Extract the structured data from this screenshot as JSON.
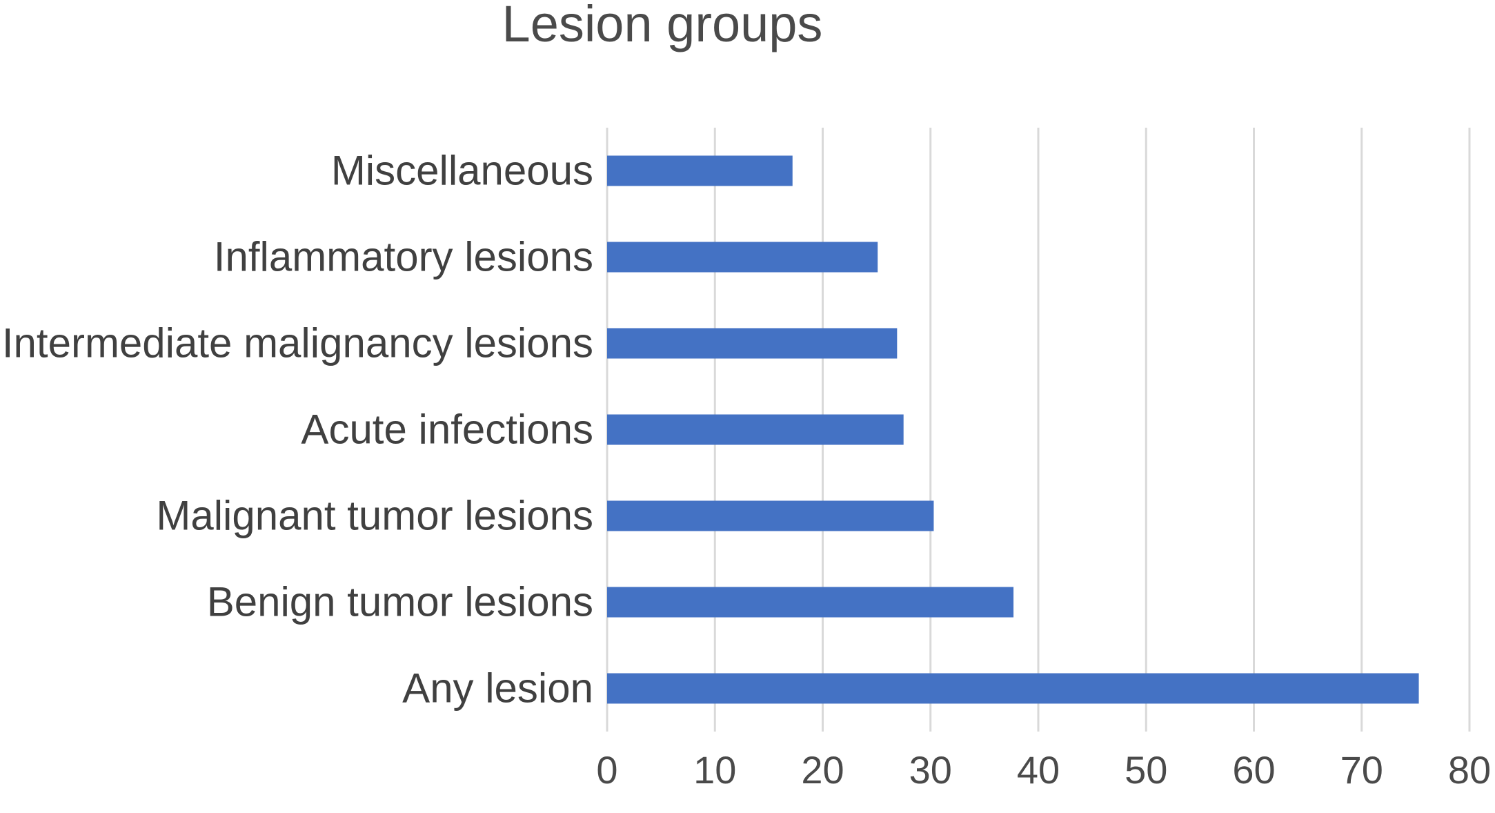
{
  "chart_data": {
    "type": "bar",
    "orientation": "horizontal",
    "title": "Lesion groups",
    "categories": [
      "Miscellaneous",
      "Inflammatory lesions",
      "Intermediate malignancy lesions",
      "Acute infections",
      "Malignant tumor lesions",
      "Benign tumor lesions",
      "Any lesion"
    ],
    "values": [
      17.2,
      25.1,
      26.9,
      27.5,
      30.3,
      37.7,
      75.3
    ],
    "xlim": [
      0,
      80
    ],
    "xticks": [
      "0",
      "10",
      "20",
      "30",
      "40",
      "50",
      "60",
      "70",
      "80"
    ],
    "xlabel": "",
    "ylabel": "",
    "grid": "vertical",
    "legend": "none",
    "bar_color": "#4472c4"
  }
}
